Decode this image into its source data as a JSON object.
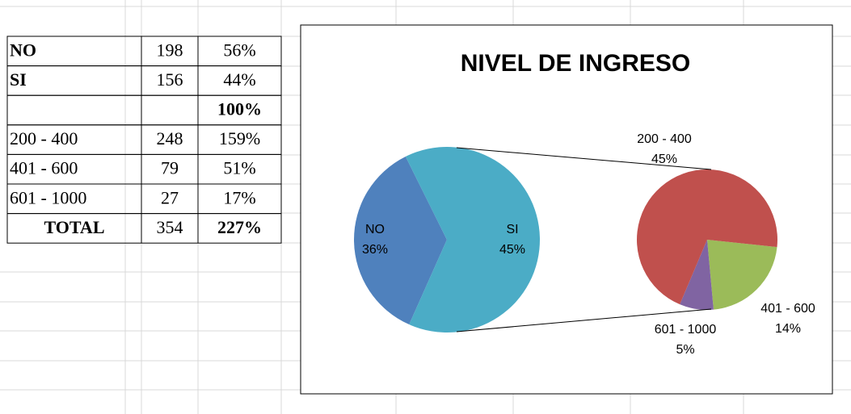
{
  "table": {
    "rows": [
      {
        "label": "NO",
        "count": "198",
        "percent": "56%",
        "bold": true
      },
      {
        "label": "SI",
        "count": "156",
        "percent": "44%",
        "bold": true
      },
      {
        "percent": "100%",
        "bold_percent": true
      },
      {
        "label": "200 - 400",
        "count": "248",
        "percent": "159%"
      },
      {
        "label": "401 - 600",
        "count": "79",
        "percent": "51%"
      },
      {
        "label": "601 - 1000",
        "count": "27",
        "percent": "17%"
      },
      {
        "label": "TOTAL",
        "count": "354",
        "percent": "227%",
        "bold": true,
        "bold_percent": true,
        "center": true
      }
    ]
  },
  "chart_data": {
    "type": "pie-of-pie",
    "title": "NIVEL DE INGRESO",
    "primary": {
      "categories": [
        "NO",
        "SI"
      ],
      "values": [
        36,
        45
      ],
      "value_labels": [
        "36%",
        "45%"
      ],
      "colors": [
        "#4f81bd",
        "#4bacc6"
      ]
    },
    "secondary": {
      "categories": [
        "200 - 400",
        "401 - 600",
        "601 - 1000"
      ],
      "values": [
        45,
        14,
        5
      ],
      "value_labels": [
        "45%",
        "14%",
        "5%"
      ],
      "colors": [
        "#c0504d",
        "#9bbb59",
        "#8064a2"
      ]
    }
  }
}
